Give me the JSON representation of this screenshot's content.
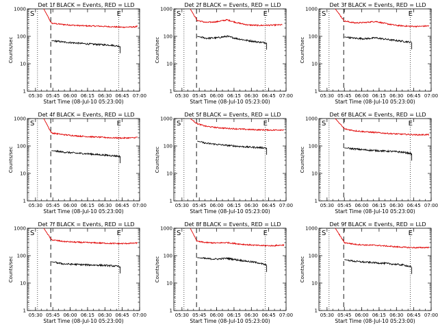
{
  "chart_data": [
    {
      "type": "line",
      "title": "Det 1f BLACK = Events, RED = LLD",
      "xlabel": "Start Time (08-Jul-10 05:23:00)",
      "ylabel": "Counts/sec",
      "x_ticks": [
        "05:30",
        "05:45",
        "06:00",
        "06:15",
        "06:30",
        "06:45",
        "07:00"
      ],
      "y_ticks": [
        "1",
        "10",
        "100",
        "1000"
      ],
      "ylim": [
        1,
        1000
      ],
      "y_scale": "log",
      "xlim": [
        "05:23",
        "07:00"
      ],
      "markers": [
        {
          "label": "S",
          "time": "05:23"
        },
        {
          "label": "E",
          "time": "06:42"
        }
      ],
      "series": [
        {
          "color": "red",
          "values": [
            [
              5.62,
              1000
            ],
            [
              5.73,
              300
            ],
            [
              5.9,
              270
            ],
            [
              6.08,
              250
            ],
            [
              6.25,
              240
            ],
            [
              6.42,
              235
            ],
            [
              6.58,
              225
            ],
            [
              6.75,
              215
            ],
            [
              6.92,
              220
            ],
            [
              6.97,
              230
            ]
          ]
        },
        {
          "color": "black",
          "values": [
            [
              5.73,
              70
            ],
            [
              5.9,
              62
            ],
            [
              6.08,
              57
            ],
            [
              6.25,
              53
            ],
            [
              6.42,
              50
            ],
            [
              6.58,
              48
            ],
            [
              6.72,
              43
            ]
          ]
        }
      ]
    },
    {
      "type": "line",
      "title": "Det 2f BLACK = Events, RED = LLD",
      "xlabel": "Start Time (08-Jul-10 05:23:00)",
      "ylabel": "Counts/sec",
      "x_ticks": [
        "05:30",
        "05:45",
        "06:00",
        "06:15",
        "06:30",
        "06:45",
        "07:00"
      ],
      "y_ticks": [
        "1",
        "10",
        "100",
        "1000"
      ],
      "ylim": [
        1,
        1000
      ],
      "y_scale": "log",
      "xlim": [
        "05:23",
        "07:00"
      ],
      "markers": [
        {
          "label": "S",
          "time": "05:23"
        },
        {
          "label": "E",
          "time": "06:42"
        }
      ],
      "series": [
        {
          "color": "red",
          "values": [
            [
              5.62,
              1000
            ],
            [
              5.72,
              380
            ],
            [
              5.85,
              320
            ],
            [
              6.0,
              340
            ],
            [
              6.15,
              400
            ],
            [
              6.3,
              310
            ],
            [
              6.45,
              260
            ],
            [
              6.6,
              250
            ],
            [
              6.8,
              255
            ],
            [
              6.95,
              265
            ]
          ]
        },
        {
          "color": "black",
          "values": [
            [
              5.72,
              100
            ],
            [
              5.85,
              85
            ],
            [
              6.0,
              88
            ],
            [
              6.15,
              100
            ],
            [
              6.3,
              82
            ],
            [
              6.45,
              70
            ],
            [
              6.6,
              62
            ],
            [
              6.72,
              58
            ]
          ]
        }
      ]
    },
    {
      "type": "line",
      "title": "Det 3f BLACK = Events, RED = LLD",
      "xlabel": "Start Time (08-Jul-10 05:23:00)",
      "ylabel": "Counts/sec",
      "x_ticks": [
        "05:30",
        "05:45",
        "06:00",
        "06:15",
        "06:30",
        "06:45",
        "07:00"
      ],
      "y_ticks": [
        "1",
        "10",
        "100",
        "1000"
      ],
      "ylim": [
        1,
        1000
      ],
      "y_scale": "log",
      "xlim": [
        "05:23",
        "07:00"
      ],
      "markers": [
        {
          "label": "S",
          "time": "05:23"
        },
        {
          "label": "E",
          "time": "06:42"
        }
      ],
      "series": [
        {
          "color": "red",
          "values": [
            [
              5.62,
              1000
            ],
            [
              5.75,
              360
            ],
            [
              5.9,
              310
            ],
            [
              6.05,
              320
            ],
            [
              6.2,
              350
            ],
            [
              6.35,
              290
            ],
            [
              6.5,
              250
            ],
            [
              6.65,
              235
            ],
            [
              6.8,
              230
            ],
            [
              6.97,
              240
            ]
          ]
        },
        {
          "color": "black",
          "values": [
            [
              5.75,
              95
            ],
            [
              5.9,
              85
            ],
            [
              6.05,
              82
            ],
            [
              6.2,
              88
            ],
            [
              6.35,
              78
            ],
            [
              6.5,
              70
            ],
            [
              6.62,
              65
            ],
            [
              6.72,
              60
            ]
          ]
        }
      ]
    },
    {
      "type": "line",
      "title": "Det 4f BLACK = Events, RED = LLD",
      "xlabel": "Start Time (08-Jul-10 05:23:00)",
      "ylabel": "Counts/sec",
      "x_ticks": [
        "05:30",
        "05:45",
        "06:00",
        "06:15",
        "06:30",
        "06:45",
        "07:00"
      ],
      "y_ticks": [
        "1",
        "10",
        "100",
        "1000"
      ],
      "ylim": [
        1,
        1000
      ],
      "y_scale": "log",
      "xlim": [
        "05:23",
        "07:00"
      ],
      "markers": [
        {
          "label": "S",
          "time": "05:23"
        },
        {
          "label": "E",
          "time": "06:42"
        }
      ],
      "series": [
        {
          "color": "red",
          "values": [
            [
              5.62,
              1000
            ],
            [
              5.73,
              300
            ],
            [
              5.9,
              260
            ],
            [
              6.08,
              235
            ],
            [
              6.25,
              220
            ],
            [
              6.42,
              210
            ],
            [
              6.58,
              200
            ],
            [
              6.75,
              195
            ],
            [
              6.92,
              200
            ],
            [
              6.97,
              210
            ]
          ]
        },
        {
          "color": "black",
          "values": [
            [
              5.73,
              68
            ],
            [
              5.9,
              60
            ],
            [
              6.08,
              55
            ],
            [
              6.25,
              52
            ],
            [
              6.42,
              48
            ],
            [
              6.58,
              45
            ],
            [
              6.72,
              42
            ]
          ]
        }
      ]
    },
    {
      "type": "line",
      "title": "Det 5f BLACK = Events, RED = LLD",
      "xlabel": "Start Time (08-Jul-10 05:23:00)",
      "ylabel": "Counts/sec",
      "x_ticks": [
        "05:30",
        "05:45",
        "06:00",
        "06:15",
        "06:30",
        "06:45",
        "07:00"
      ],
      "y_ticks": [
        "1",
        "10",
        "100",
        "1000"
      ],
      "ylim": [
        1,
        1000
      ],
      "y_scale": "log",
      "xlim": [
        "05:23",
        "07:00"
      ],
      "markers": [
        {
          "label": "S",
          "time": "05:23"
        },
        {
          "label": "E",
          "time": "06:42"
        }
      ],
      "series": [
        {
          "color": "red",
          "values": [
            [
              5.62,
              1000
            ],
            [
              5.72,
              650
            ],
            [
              5.85,
              520
            ],
            [
              6.0,
              470
            ],
            [
              6.15,
              440
            ],
            [
              6.3,
              420
            ],
            [
              6.45,
              400
            ],
            [
              6.6,
              390
            ],
            [
              6.8,
              380
            ],
            [
              6.97,
              390
            ]
          ]
        },
        {
          "color": "black",
          "values": [
            [
              5.72,
              150
            ],
            [
              5.85,
              125
            ],
            [
              6.0,
              115
            ],
            [
              6.15,
              105
            ],
            [
              6.3,
              98
            ],
            [
              6.45,
              92
            ],
            [
              6.6,
              88
            ],
            [
              6.72,
              85
            ]
          ]
        }
      ]
    },
    {
      "type": "line",
      "title": "Det 6f BLACK = Events, RED = LLD",
      "xlabel": "Start Time (08-Jul-10 05:23:00)",
      "ylabel": "Counts/sec",
      "x_ticks": [
        "05:30",
        "05:45",
        "06:00",
        "06:15",
        "06:30",
        "06:45",
        "07:00"
      ],
      "y_ticks": [
        "1",
        "10",
        "100",
        "1000"
      ],
      "ylim": [
        1,
        1000
      ],
      "y_scale": "log",
      "xlim": [
        "05:23",
        "07:00"
      ],
      "markers": [
        {
          "label": "S",
          "time": "05:23"
        },
        {
          "label": "E",
          "time": "06:42"
        }
      ],
      "series": [
        {
          "color": "red",
          "values": [
            [
              5.62,
              1000
            ],
            [
              5.75,
              420
            ],
            [
              5.9,
              360
            ],
            [
              6.05,
              330
            ],
            [
              6.2,
              310
            ],
            [
              6.35,
              290
            ],
            [
              6.5,
              275
            ],
            [
              6.65,
              265
            ],
            [
              6.8,
              255
            ],
            [
              6.97,
              260
            ]
          ]
        },
        {
          "color": "black",
          "values": [
            [
              5.75,
              85
            ],
            [
              5.9,
              78
            ],
            [
              6.05,
              72
            ],
            [
              6.2,
              68
            ],
            [
              6.35,
              65
            ],
            [
              6.5,
              62
            ],
            [
              6.62,
              58
            ],
            [
              6.72,
              52
            ]
          ]
        }
      ]
    },
    {
      "type": "line",
      "title": "Det 7f BLACK = Events, RED = LLD",
      "xlabel": "Start Time (08-Jul-10 05:23:00)",
      "ylabel": "Counts/sec",
      "x_ticks": [
        "05:30",
        "05:45",
        "06:00",
        "06:15",
        "06:30",
        "06:45",
        "07:00"
      ],
      "y_ticks": [
        "1",
        "10",
        "100",
        "1000"
      ],
      "ylim": [
        1,
        1000
      ],
      "y_scale": "log",
      "xlim": [
        "05:23",
        "07:00"
      ],
      "markers": [
        {
          "label": "S",
          "time": "05:23"
        },
        {
          "label": "E",
          "time": "06:42"
        }
      ],
      "series": [
        {
          "color": "red",
          "values": [
            [
              5.62,
              1000
            ],
            [
              5.73,
              380
            ],
            [
              5.9,
              330
            ],
            [
              6.08,
              310
            ],
            [
              6.25,
              300
            ],
            [
              6.42,
              290
            ],
            [
              6.58,
              280
            ],
            [
              6.75,
              275
            ],
            [
              6.92,
              285
            ],
            [
              6.97,
              290
            ]
          ]
        },
        {
          "color": "black",
          "values": [
            [
              5.73,
              60
            ],
            [
              5.9,
              50
            ],
            [
              6.08,
              48
            ],
            [
              6.25,
              46
            ],
            [
              6.42,
              45
            ],
            [
              6.58,
              43
            ],
            [
              6.72,
              40
            ]
          ]
        }
      ]
    },
    {
      "type": "line",
      "title": "Det 8f BLACK = Events, RED = LLD",
      "xlabel": "Start Time (08-Jul-10 05:23:00)",
      "ylabel": "Counts/sec",
      "x_ticks": [
        "05:30",
        "05:45",
        "06:00",
        "06:15",
        "06:30",
        "06:45",
        "07:00"
      ],
      "y_ticks": [
        "1",
        "10",
        "100",
        "1000"
      ],
      "ylim": [
        1,
        1000
      ],
      "y_scale": "log",
      "xlim": [
        "05:23",
        "07:00"
      ],
      "markers": [
        {
          "label": "S",
          "time": "05:23"
        },
        {
          "label": "E",
          "time": "06:42"
        }
      ],
      "series": [
        {
          "color": "red",
          "values": [
            [
              5.62,
              1000
            ],
            [
              5.72,
              330
            ],
            [
              5.85,
              300
            ],
            [
              6.0,
              290
            ],
            [
              6.15,
              300
            ],
            [
              6.3,
              270
            ],
            [
              6.45,
              250
            ],
            [
              6.6,
              235
            ],
            [
              6.8,
              230
            ],
            [
              6.97,
              245
            ]
          ]
        },
        {
          "color": "black",
          "values": [
            [
              5.72,
              85
            ],
            [
              5.85,
              78
            ],
            [
              6.0,
              75
            ],
            [
              6.15,
              80
            ],
            [
              6.3,
              70
            ],
            [
              6.45,
              62
            ],
            [
              6.6,
              55
            ],
            [
              6.72,
              45
            ]
          ]
        }
      ]
    },
    {
      "type": "line",
      "title": "Det 9f BLACK = Events, RED = LLD",
      "xlabel": "Start Time (08-Jul-10 05:23:00)",
      "ylabel": "Counts/sec",
      "x_ticks": [
        "05:30",
        "05:45",
        "06:00",
        "06:15",
        "06:30",
        "06:45",
        "07:00"
      ],
      "y_ticks": [
        "1",
        "10",
        "100",
        "1000"
      ],
      "ylim": [
        1,
        1000
      ],
      "y_scale": "log",
      "xlim": [
        "05:23",
        "07:00"
      ],
      "markers": [
        {
          "label": "S",
          "time": "05:23"
        },
        {
          "label": "E",
          "time": "06:42"
        }
      ],
      "series": [
        {
          "color": "red",
          "values": [
            [
              5.62,
              1000
            ],
            [
              5.75,
              300
            ],
            [
              5.9,
              260
            ],
            [
              6.05,
              245
            ],
            [
              6.2,
              240
            ],
            [
              6.35,
              225
            ],
            [
              6.5,
              210
            ],
            [
              6.65,
              200
            ],
            [
              6.8,
              195
            ],
            [
              6.97,
              200
            ]
          ]
        },
        {
          "color": "black",
          "values": [
            [
              5.75,
              72
            ],
            [
              5.9,
              62
            ],
            [
              6.05,
              58
            ],
            [
              6.2,
              55
            ],
            [
              6.35,
              52
            ],
            [
              6.5,
              48
            ],
            [
              6.62,
              45
            ],
            [
              6.72,
              38
            ]
          ]
        }
      ]
    }
  ]
}
